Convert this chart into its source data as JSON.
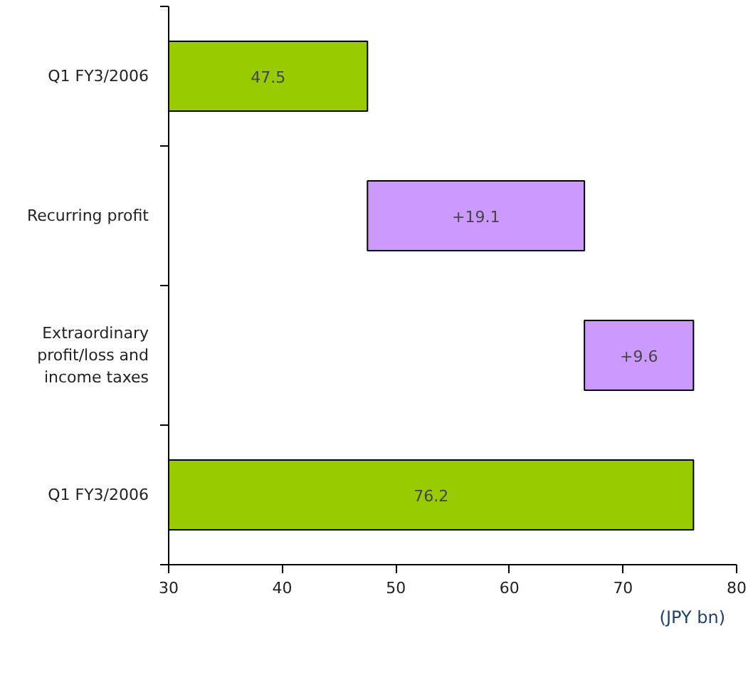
{
  "chart_data": {
    "type": "bar",
    "orientation": "horizontal",
    "categories": [
      "Q1 FY3/2006",
      "Recurring profit",
      "Extraordinary profit/loss and income taxes",
      "Q1 FY3/2006"
    ],
    "values": [
      47.5,
      19.1,
      9.6,
      76.2
    ],
    "base": [
      0,
      47.5,
      66.6,
      0
    ],
    "colors": [
      "#99cc00",
      "#cc99ff",
      "#cc99ff",
      "#99cc00"
    ],
    "value_labels": [
      "47.5",
      "+19.1",
      "+9.6",
      "76.2"
    ],
    "xlim": [
      30,
      80
    ],
    "xticks": [
      30,
      40,
      50,
      60,
      70,
      80
    ],
    "xlabel": "(JPY bn)",
    "grid": false
  }
}
